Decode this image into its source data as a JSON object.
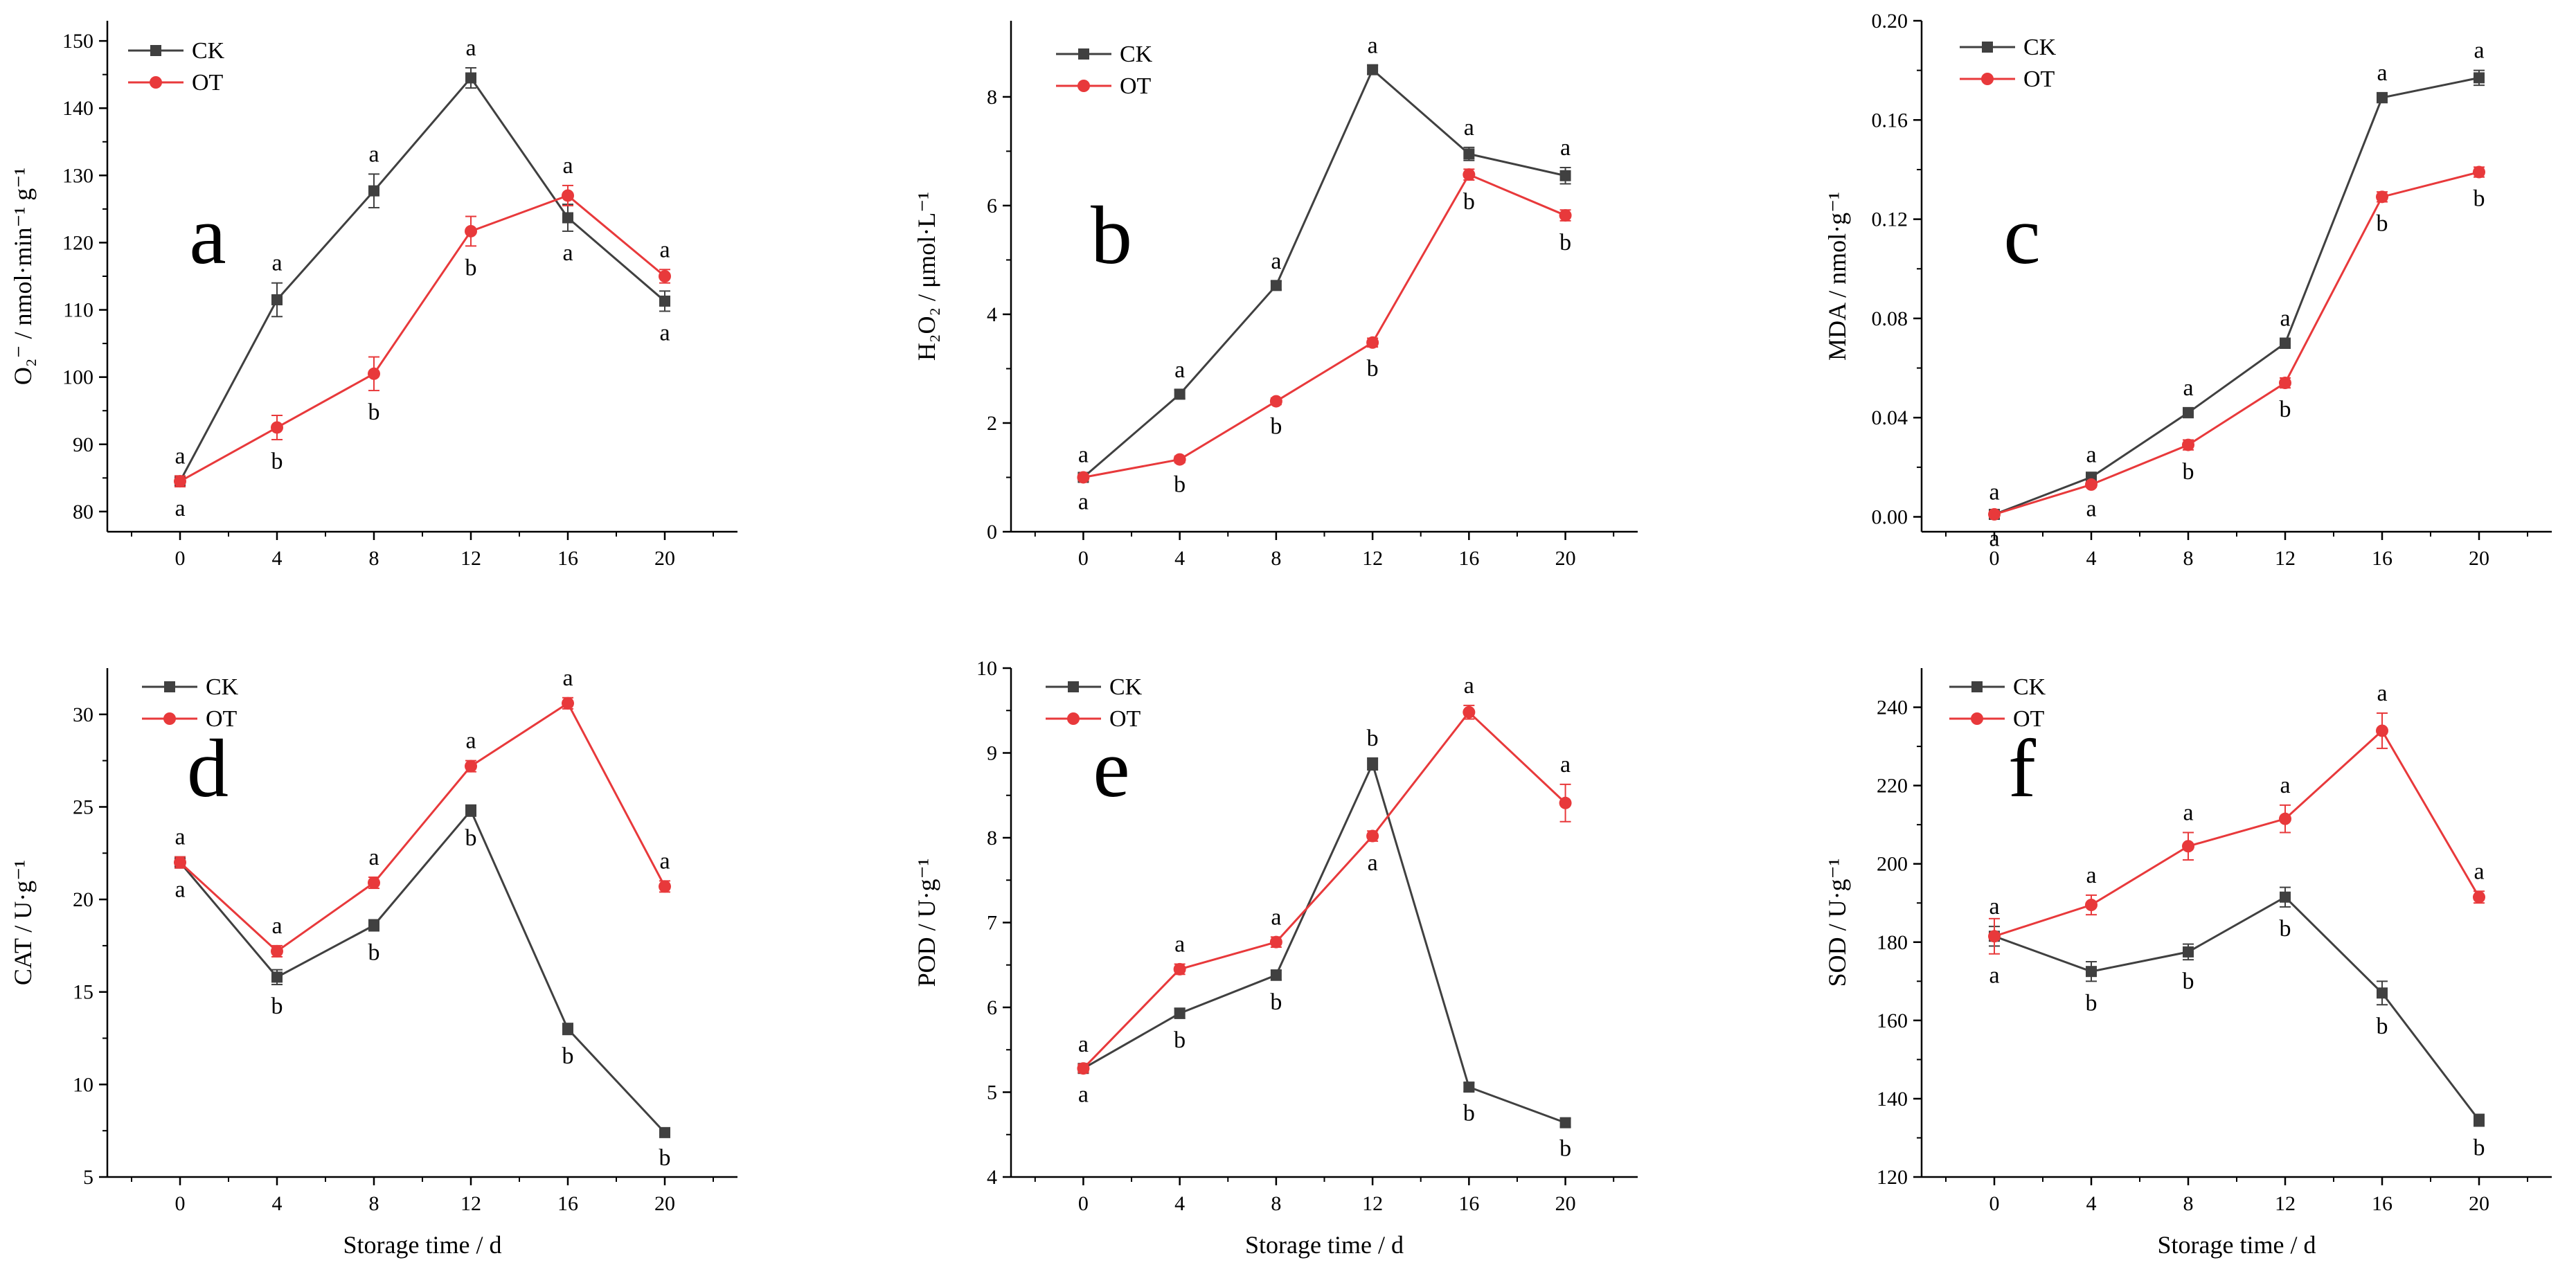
{
  "chart_data": [
    {
      "id": "a",
      "type": "line",
      "panel_label": "a",
      "ylabel": "O₂⁻ / nmol·min⁻¹ g⁻¹",
      "xlabel": "",
      "x": [
        0,
        4,
        8,
        12,
        16,
        20
      ],
      "ylim": [
        77,
        153
      ],
      "yticks": [
        80,
        90,
        100,
        110,
        120,
        130,
        140,
        150
      ],
      "series": [
        {
          "name": "CK",
          "color": "#404040",
          "marker": "square",
          "values": [
            84.5,
            111.5,
            127.7,
            144.5,
            123.7,
            111.3
          ],
          "errors": [
            0.8,
            2.5,
            2.5,
            1.5,
            2,
            1.5
          ],
          "labels": [
            "a",
            "a",
            "a",
            "a",
            "a",
            "a"
          ]
        },
        {
          "name": "OT",
          "color": "#e8393b",
          "marker": "circle",
          "values": [
            84.5,
            92.5,
            100.5,
            121.7,
            127,
            115
          ],
          "errors": [
            0.8,
            1.8,
            2.5,
            2.2,
            1.5,
            1
          ],
          "labels": [
            "a",
            "b",
            "b",
            "b",
            "a",
            "a"
          ]
        }
      ]
    },
    {
      "id": "b",
      "type": "line",
      "panel_label": "b",
      "ylabel": "H₂O₂ / μmol·L⁻¹",
      "xlabel": "",
      "x": [
        0,
        4,
        8,
        12,
        16,
        20
      ],
      "ylim": [
        0,
        9.4
      ],
      "yticks": [
        0,
        2,
        4,
        6,
        8
      ],
      "series": [
        {
          "name": "CK",
          "color": "#404040",
          "marker": "square",
          "values": [
            1,
            2.53,
            4.53,
            8.5,
            6.95,
            6.55
          ],
          "errors": [
            0.05,
            0.08,
            0.08,
            0.08,
            0.12,
            0.15
          ],
          "labels": [
            "a",
            "a",
            "a",
            "a",
            "a",
            "a"
          ]
        },
        {
          "name": "OT",
          "color": "#e8393b",
          "marker": "circle",
          "values": [
            1,
            1.33,
            2.4,
            3.48,
            6.57,
            5.82
          ],
          "errors": [
            0.05,
            0.06,
            0.06,
            0.08,
            0.1,
            0.1
          ],
          "labels": [
            "a",
            "b",
            "b",
            "b",
            "b",
            "b"
          ]
        }
      ]
    },
    {
      "id": "c",
      "type": "line",
      "panel_label": "c",
      "ylabel": "MDA / nmol·g⁻¹",
      "xlabel": "",
      "x": [
        0,
        4,
        8,
        12,
        16,
        20
      ],
      "ylim": [
        -0.006,
        0.2
      ],
      "yticks": [
        0.0,
        0.04,
        0.08,
        0.12,
        0.16,
        0.2
      ],
      "yticklabels": [
        "0.00",
        "0.04",
        "0.08",
        "0.12",
        "0.16",
        "0.20"
      ],
      "series": [
        {
          "name": "CK",
          "color": "#404040",
          "marker": "square",
          "values": [
            0.001,
            0.016,
            0.042,
            0.07,
            0.169,
            0.177
          ],
          "errors": [
            0.001,
            0.001,
            0.002,
            0.002,
            0.002,
            0.003
          ],
          "labels": [
            "a",
            "a",
            "a",
            "a",
            "a",
            "a"
          ]
        },
        {
          "name": "OT",
          "color": "#e8393b",
          "marker": "circle",
          "values": [
            0.001,
            0.013,
            0.029,
            0.054,
            0.129,
            0.139
          ],
          "errors": [
            0.001,
            0.001,
            0.002,
            0.002,
            0.002,
            0.002
          ],
          "labels": [
            "a",
            "a",
            "b",
            "b",
            "b",
            "b"
          ]
        }
      ]
    },
    {
      "id": "d",
      "type": "line",
      "panel_label": "d",
      "ylabel": "CAT / U·g⁻¹",
      "xlabel": "Storage time / d",
      "x": [
        0,
        4,
        8,
        12,
        16,
        20
      ],
      "ylim": [
        5,
        32.5
      ],
      "yticks": [
        5,
        10,
        15,
        20,
        25,
        30
      ],
      "series": [
        {
          "name": "CK",
          "color": "#404040",
          "marker": "square",
          "values": [
            22,
            15.8,
            18.6,
            24.8,
            13,
            7.4
          ],
          "errors": [
            0.3,
            0.4,
            0.3,
            0.3,
            0.3,
            0.2
          ],
          "labels": [
            "a",
            "b",
            "b",
            "b",
            "b",
            "b"
          ]
        },
        {
          "name": "OT",
          "color": "#e8393b",
          "marker": "circle",
          "values": [
            22,
            17.2,
            20.9,
            27.2,
            30.6,
            20.7
          ],
          "errors": [
            0.3,
            0.3,
            0.3,
            0.3,
            0.3,
            0.3
          ],
          "labels": [
            "a",
            "a",
            "a",
            "a",
            "a",
            "a"
          ]
        }
      ]
    },
    {
      "id": "e",
      "type": "line",
      "panel_label": "e",
      "ylabel": "POD / U·g⁻¹",
      "xlabel": "Storage time / d",
      "x": [
        0,
        4,
        8,
        12,
        16,
        20
      ],
      "ylim": [
        4,
        10
      ],
      "yticks": [
        4,
        5,
        6,
        7,
        8,
        9,
        10
      ],
      "series": [
        {
          "name": "CK",
          "color": "#404040",
          "marker": "square",
          "values": [
            5.28,
            5.93,
            6.38,
            8.87,
            5.06,
            4.64
          ],
          "errors": [
            0.05,
            0.06,
            0.06,
            0.07,
            0.05,
            0.05
          ],
          "labels": [
            "a",
            "b",
            "b",
            "b",
            "b",
            "b"
          ]
        },
        {
          "name": "OT",
          "color": "#e8393b",
          "marker": "circle",
          "values": [
            5.28,
            6.45,
            6.77,
            8.02,
            9.48,
            8.41
          ],
          "errors": [
            0.05,
            0.06,
            0.06,
            0.06,
            0.08,
            0.22
          ],
          "labels": [
            "a",
            "a",
            "a",
            "a",
            "a",
            "a"
          ]
        }
      ]
    },
    {
      "id": "f",
      "type": "line",
      "panel_label": "f",
      "ylabel": "SOD / U·g⁻¹",
      "xlabel": "Storage time / d",
      "x": [
        0,
        4,
        8,
        12,
        16,
        20
      ],
      "ylim": [
        120,
        250
      ],
      "yticks": [
        120,
        140,
        160,
        180,
        200,
        220,
        240
      ],
      "series": [
        {
          "name": "CK",
          "color": "#404040",
          "marker": "square",
          "values": [
            181.5,
            172.5,
            177.5,
            191.5,
            167,
            134.5
          ],
          "errors": [
            2.5,
            2.5,
            2,
            2.5,
            3,
            1.5
          ],
          "labels": [
            "a",
            "b",
            "b",
            "b",
            "b",
            "b"
          ]
        },
        {
          "name": "OT",
          "color": "#e8393b",
          "marker": "circle",
          "values": [
            181.5,
            189.5,
            204.5,
            211.5,
            234,
            191.5
          ],
          "errors": [
            4.5,
            2.5,
            3.5,
            3.5,
            4.5,
            1.5
          ],
          "labels": [
            "a",
            "a",
            "a",
            "a",
            "a",
            "a"
          ]
        }
      ]
    }
  ]
}
